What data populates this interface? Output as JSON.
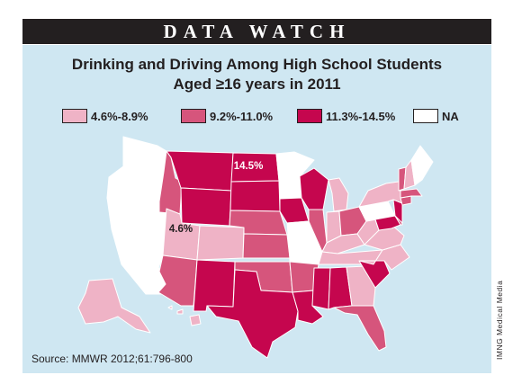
{
  "banner": "DATA WATCH",
  "title_line1": "Drinking and Driving Among High School Students",
  "title_line2": "Aged ≥16 years in 2011",
  "legend": [
    {
      "label": "4.6%-8.9%",
      "color": "#efb3c6"
    },
    {
      "label": "9.2%-11.0%",
      "color": "#d6557c"
    },
    {
      "label": "11.3%-14.5%",
      "color": "#c5064e"
    },
    {
      "label": "NA",
      "color": "#ffffff"
    }
  ],
  "map_labels": {
    "high": "14.5%",
    "low": "4.6%"
  },
  "categories": {
    "WA": "NA",
    "OR": "NA",
    "CA": "NA",
    "NV": "NA",
    "MN": "NA",
    "MO": "NA",
    "PA": "NA",
    "ME": "NA",
    "UT": "low",
    "CO": "low",
    "ID": "mid",
    "AK": "low",
    "NE": "mid",
    "KS": "mid",
    "IA": "high",
    "MT": "high",
    "ND": "high",
    "WY": "high",
    "SD": "high",
    "NM": "high",
    "TX": "high",
    "WI": "high",
    "LA": "high",
    "MS": "high",
    "AL": "high",
    "SC": "high",
    "NJ": "high",
    "MD": "high",
    "AZ": "mid",
    "OK": "mid",
    "AR": "mid",
    "IL": "mid",
    "OH": "mid",
    "FL": "mid",
    "MA": "mid",
    "CT": "mid",
    "VT": "mid",
    "MI": "low",
    "IN": "low",
    "KY": "low",
    "TN": "low",
    "WV": "low",
    "VA": "low",
    "NC": "low",
    "GA": "low",
    "NY": "low",
    "NH": "low",
    "HI": "low",
    "DE": "mid"
  },
  "source": "Source: MMWR 2012;61:796-800",
  "credit": "IMNG Medical Media"
}
